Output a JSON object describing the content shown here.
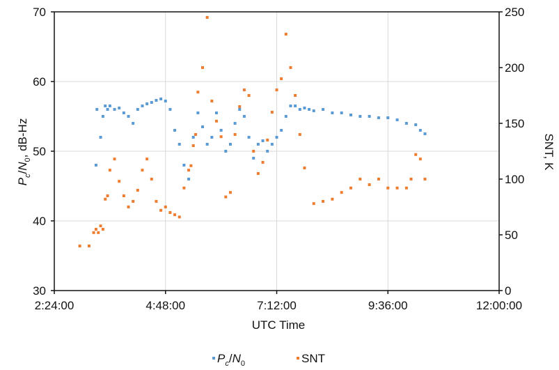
{
  "chart_data": {
    "type": "scatter",
    "title": "",
    "xlabel": "UTC Time",
    "y_left_label": {
      "var1": "P",
      "var1_sub": "c",
      "sep": "/",
      "var2": "N",
      "var2_sub": "0",
      "unit": ", dB-Hz"
    },
    "y_right_label": "SNT, K",
    "x_ticks": [
      "2:24:00",
      "4:48:00",
      "7:12:00",
      "9:36:00",
      "12:00:00"
    ],
    "x_range_hours": [
      2.4,
      12.0
    ],
    "y_left_range": [
      30,
      70
    ],
    "y_left_ticks": [
      "30",
      "40",
      "50",
      "60",
      "70"
    ],
    "y_right_range": [
      0,
      250
    ],
    "y_right_ticks": [
      "0",
      "50",
      "100",
      "150",
      "200",
      "250"
    ],
    "grid": true,
    "legend_position": "bottom",
    "series": [
      {
        "name": "Pc/N0",
        "legend": {
          "var": "P",
          "var_sub": "c",
          "sep": "/",
          "var2": "N",
          "var2_sub": "0"
        },
        "axis": "left",
        "color": "#5b9bd5",
        "x": [
          3.3,
          3.32,
          3.4,
          3.45,
          3.5,
          3.55,
          3.6,
          3.7,
          3.8,
          3.9,
          4.0,
          4.1,
          4.2,
          4.3,
          4.4,
          4.5,
          4.6,
          4.7,
          4.8,
          4.9,
          5.0,
          5.1,
          5.2,
          5.3,
          5.4,
          5.5,
          5.6,
          5.7,
          5.8,
          5.9,
          6.0,
          6.1,
          6.2,
          6.3,
          6.4,
          6.5,
          6.6,
          6.7,
          6.8,
          6.9,
          7.0,
          7.1,
          7.2,
          7.3,
          7.4,
          7.5,
          7.6,
          7.7,
          7.8,
          7.9,
          8.0,
          8.2,
          8.4,
          8.6,
          8.8,
          9.0,
          9.2,
          9.4,
          9.6,
          9.8,
          10.0,
          10.2,
          10.3,
          10.4
        ],
        "y": [
          48,
          56,
          52,
          55,
          56.5,
          56,
          56.5,
          56,
          56.2,
          55.5,
          55,
          54,
          56,
          56.5,
          56.8,
          57,
          57.3,
          57.5,
          57.2,
          56,
          53,
          51,
          48,
          46,
          52,
          55.5,
          53.5,
          51,
          52,
          55.5,
          53,
          50,
          51,
          54,
          56,
          55,
          52,
          49,
          51,
          51.5,
          50,
          51,
          52,
          53,
          55,
          56.5,
          56.5,
          56,
          56.2,
          56,
          55.8,
          56,
          55.5,
          55.5,
          55.2,
          55,
          55,
          54.8,
          54.8,
          54.5,
          54,
          53.8,
          53,
          52.5
        ]
      },
      {
        "name": "SNT",
        "legend": {
          "var": "SNT"
        },
        "axis": "right",
        "color": "#ed7d31",
        "x": [
          2.95,
          3.15,
          3.25,
          3.3,
          3.35,
          3.4,
          3.45,
          3.5,
          3.55,
          3.6,
          3.7,
          3.8,
          3.9,
          4.0,
          4.1,
          4.2,
          4.3,
          4.4,
          4.5,
          4.6,
          4.7,
          4.8,
          4.9,
          5.0,
          5.1,
          5.2,
          5.3,
          5.35,
          5.4,
          5.45,
          5.5,
          5.6,
          5.7,
          5.8,
          5.9,
          6.0,
          6.1,
          6.2,
          6.3,
          6.4,
          6.5,
          6.6,
          6.7,
          6.8,
          6.9,
          7.0,
          7.1,
          7.2,
          7.3,
          7.4,
          7.5,
          7.6,
          7.7,
          7.8,
          8.0,
          8.2,
          8.4,
          8.6,
          8.8,
          9.0,
          9.2,
          9.4,
          9.6,
          9.8,
          10.0,
          10.1,
          10.2,
          10.3,
          10.4
        ],
        "y": [
          40,
          40,
          52,
          55,
          52,
          58,
          55,
          82,
          85,
          108,
          118,
          98,
          85,
          75,
          80,
          90,
          108,
          118,
          100,
          80,
          72,
          75,
          70,
          68,
          66,
          92,
          108,
          112,
          130,
          140,
          178,
          200,
          245,
          170,
          152,
          138,
          84,
          88,
          140,
          165,
          180,
          175,
          125,
          105,
          115,
          135,
          160,
          180,
          190,
          230,
          200,
          175,
          140,
          110,
          78,
          80,
          82,
          88,
          92,
          100,
          95,
          100,
          92,
          92,
          92,
          100,
          122,
          118,
          100
        ]
      }
    ]
  }
}
